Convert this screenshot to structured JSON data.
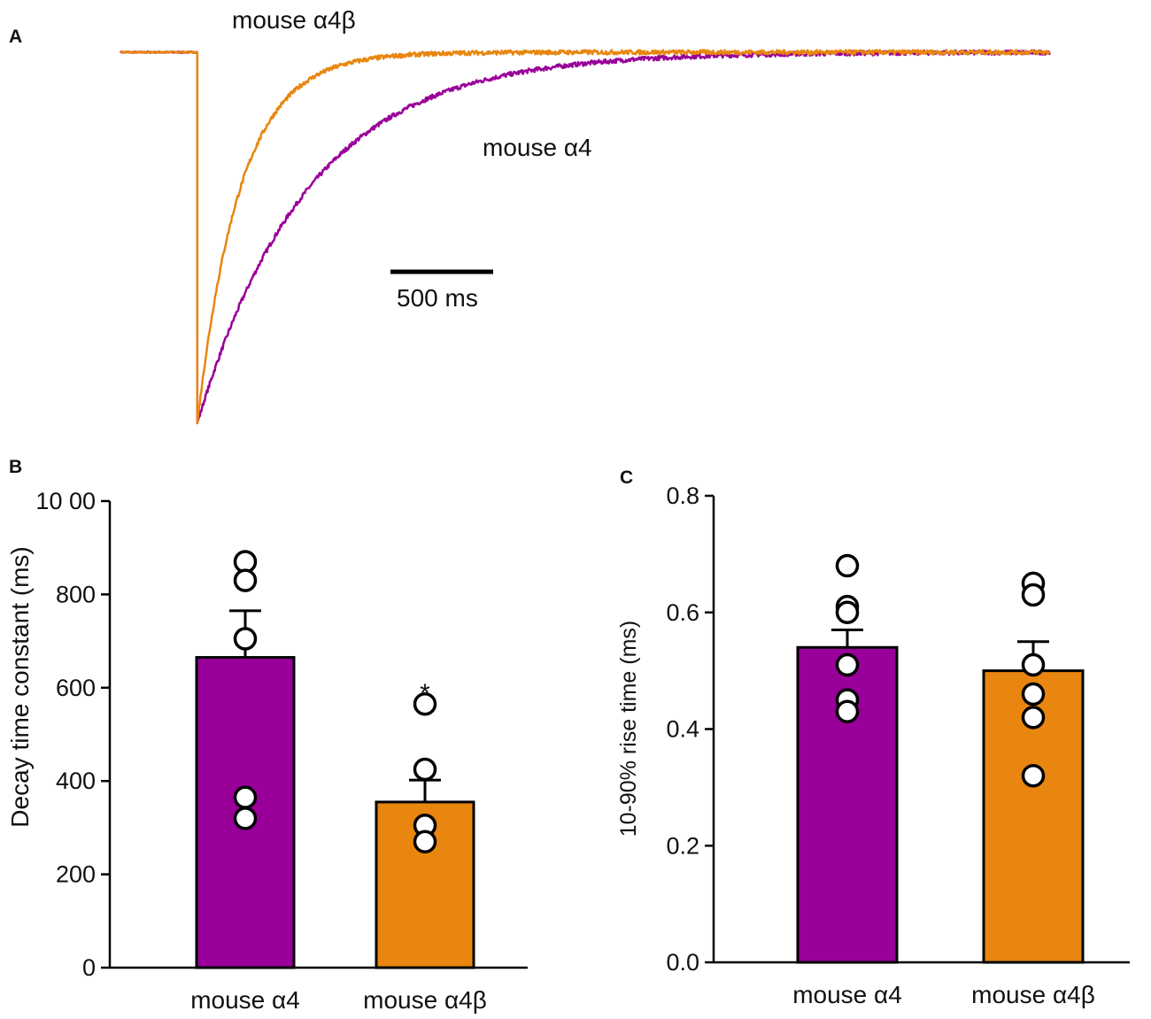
{
  "colors": {
    "alpha4": "#990099",
    "alpha4beta": "#E8860F",
    "axis": "#000000",
    "marker_fill": "#ffffff"
  },
  "panels": {
    "a": {
      "label": "A"
    },
    "b": {
      "label": "B"
    },
    "c": {
      "label": "C"
    }
  },
  "chart_data": [
    {
      "panel": "A",
      "type": "line",
      "title": "",
      "description_units": "normalized current traces, baseline 0, peak -1",
      "series": [
        {
          "name": "mouse α4",
          "color_key": "alpha4",
          "decay_tau_ms": 620,
          "onset_ms": 430,
          "duration_ms": 5200
        },
        {
          "name": "mouse α4β",
          "color_key": "alpha4beta",
          "decay_tau_ms": 240,
          "onset_ms": 430,
          "duration_ms": 5200
        }
      ],
      "scale_bar": {
        "value": 500,
        "unit": "ms",
        "label": "500 ms"
      },
      "series_labels": [
        "mouse α4β",
        "mouse α4"
      ]
    },
    {
      "panel": "B",
      "type": "bar",
      "categories": [
        "mouse α4",
        "mouse α4β"
      ],
      "values": [
        665,
        355
      ],
      "sem": [
        100,
        47
      ],
      "points": [
        [
          870,
          830,
          705,
          365,
          320
        ],
        [
          565,
          425,
          305,
          270
        ]
      ],
      "annotations": [
        "",
        "*"
      ],
      "xlabel": "",
      "ylabel": "Decay time constant (ms)",
      "ylim": [
        0,
        1000
      ],
      "yticks": [
        0,
        200,
        400,
        600,
        800,
        1000
      ],
      "ytick_labels": [
        "0",
        "200",
        "400",
        "600",
        "800",
        "10 00"
      ]
    },
    {
      "panel": "C",
      "type": "bar",
      "categories": [
        "mouse α4",
        "mouse α4β"
      ],
      "values": [
        0.54,
        0.5
      ],
      "sem": [
        0.03,
        0.05
      ],
      "points": [
        [
          0.68,
          0.61,
          0.6,
          0.51,
          0.45,
          0.43
        ],
        [
          0.65,
          0.63,
          0.51,
          0.46,
          0.42,
          0.32
        ]
      ],
      "xlabel": "",
      "ylabel": "10-90% rise time (ms)",
      "ylim": [
        0,
        0.8
      ],
      "yticks": [
        0,
        0.2,
        0.4,
        0.6,
        0.8
      ],
      "ytick_labels": [
        "0.0",
        "0.2",
        "0.4",
        "0.6",
        "0.8"
      ]
    }
  ]
}
